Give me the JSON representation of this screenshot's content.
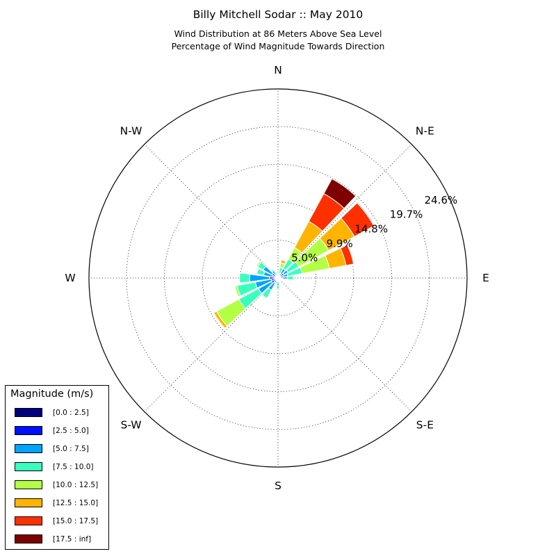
{
  "title": "Billy Mitchell Sodar :: May 2010",
  "subtitle1": "Wind Distribution at 86 Meters Above Sea Level",
  "subtitle2": "Percentage of Wind Magnitude Towards Direction",
  "legend": {
    "title": "Magnitude (m/s)",
    "items": [
      {
        "label": "[0.0 : 2.5]",
        "color": "#00007f"
      },
      {
        "label": "[2.5 : 5.0]",
        "color": "#0010ff"
      },
      {
        "label": "[5.0 : 7.5]",
        "color": "#00a4ff"
      },
      {
        "label": "[7.5 : 10.0]",
        "color": "#39ffbd"
      },
      {
        "label": "[10.0 : 12.5]",
        "color": "#b3ff44"
      },
      {
        "label": "[12.5 : 15.0]",
        "color": "#ffb400"
      },
      {
        "label": "[15.0 : 17.5]",
        "color": "#ff3000"
      },
      {
        "label": "[17.5 : inf]",
        "color": "#7f0000"
      }
    ]
  },
  "chart_data": {
    "type": "windrose",
    "direction_labels": [
      "N",
      "N-E",
      "E",
      "S-E",
      "S",
      "S-W",
      "W",
      "N-W"
    ],
    "radial_ticks": [
      "5.0%",
      "9.9%",
      "14.8%",
      "19.7%",
      "24.6%"
    ],
    "radial_tick_values": [
      4.93,
      9.86,
      14.79,
      19.72,
      24.6
    ],
    "rmax": 24.6,
    "angular_grid_deg": [
      0,
      45,
      90,
      135,
      180,
      225,
      270,
      315
    ],
    "bins": [
      "[0.0 : 2.5]",
      "[2.5 : 5.0]",
      "[5.0 : 7.5]",
      "[7.5 : 10.0]",
      "[10.0 : 12.5]",
      "[12.5 : 15.0]",
      "[15.0 : 17.5]",
      "[17.5 : inf]"
    ],
    "sector_width_deg": 15,
    "sectors": [
      {
        "direction_deg": 0,
        "cum": [
          0.1,
          0.3,
          0.4,
          0.5,
          1.0
        ]
      },
      {
        "direction_deg": 18,
        "cum": [
          0.2,
          0.4,
          0.6,
          1.4,
          2.0,
          2.4
        ]
      },
      {
        "direction_deg": 36,
        "cum": [
          0.3,
          0.6,
          1.4,
          2.8,
          4.5,
          8.4,
          12.5,
          14.7
        ]
      },
      {
        "direction_deg": 54,
        "cum": [
          0.4,
          0.9,
          1.5,
          3.1,
          7.5,
          11.3,
          14.2,
          14.3
        ]
      },
      {
        "direction_deg": 72,
        "cum": [
          0.3,
          0.7,
          1.3,
          3.2,
          6.8,
          9.0,
          10.0
        ]
      },
      {
        "direction_deg": 90,
        "cum": [
          0.3,
          0.6,
          1.2,
          2.0,
          2.1
        ]
      },
      {
        "direction_deg": 108,
        "cum": [
          0.2,
          0.4,
          0.5
        ]
      },
      {
        "direction_deg": 126,
        "cum": [
          0.1,
          0.4
        ]
      },
      {
        "direction_deg": 144,
        "cum": [
          0.1,
          0.3,
          0.4
        ]
      },
      {
        "direction_deg": 162,
        "cum": [
          0.1,
          0.3
        ]
      },
      {
        "direction_deg": 180,
        "cum": [
          0.2,
          0.5,
          1.0,
          1.4,
          1.6
        ]
      },
      {
        "direction_deg": 198,
        "cum": [
          0.2,
          0.4,
          0.7,
          0.9
        ]
      },
      {
        "direction_deg": 216,
        "cum": [
          0.3,
          0.7,
          1.8,
          3.0,
          3.1
        ]
      },
      {
        "direction_deg": 234,
        "cum": [
          0.4,
          1.0,
          2.9,
          5.8,
          9.1,
          9.5
        ]
      },
      {
        "direction_deg": 252,
        "cum": [
          0.4,
          0.9,
          3.0,
          5.4,
          5.7
        ]
      },
      {
        "direction_deg": 270,
        "cum": [
          0.5,
          1.1,
          3.7,
          5.0
        ]
      },
      {
        "direction_deg": 288,
        "cum": [
          0.3,
          0.7,
          1.9,
          2.8
        ]
      },
      {
        "direction_deg": 306,
        "cum": [
          0.3,
          0.9,
          2.2,
          3.0,
          3.2
        ]
      },
      {
        "direction_deg": 324,
        "cum": [
          0.2,
          0.5,
          1.1,
          1.3
        ]
      },
      {
        "direction_deg": 342,
        "cum": [
          0.1,
          0.3,
          0.6,
          0.8,
          0.9
        ]
      }
    ]
  }
}
